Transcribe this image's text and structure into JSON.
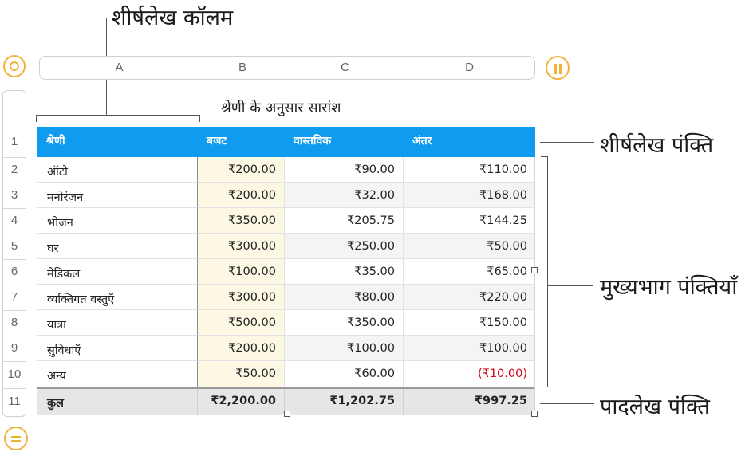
{
  "callouts": {
    "header_column": "शीर्षलेख कॉलम",
    "header_row": "शीर्षलेख पंक्ति",
    "body_rows": "मुख्यभाग पंक्तियाँ",
    "footer_row": "पादलेख पंक्ति"
  },
  "column_letters": [
    "A",
    "B",
    "C",
    "D"
  ],
  "row_numbers": [
    "1",
    "2",
    "3",
    "4",
    "5",
    "6",
    "7",
    "8",
    "9",
    "10",
    "11"
  ],
  "table": {
    "title": "श्रेणी के अनुसार सारांश",
    "headers": [
      "श्रेणी",
      "बजट",
      "वास्तविक",
      "अंतर"
    ],
    "rows": [
      {
        "category": "ऑटो",
        "budget": "₹200.00",
        "actual": "₹90.00",
        "diff": "₹110.00"
      },
      {
        "category": "मनोरंजन",
        "budget": "₹200.00",
        "actual": "₹32.00",
        "diff": "₹168.00"
      },
      {
        "category": "भोजन",
        "budget": "₹350.00",
        "actual": "₹205.75",
        "diff": "₹144.25"
      },
      {
        "category": "घर",
        "budget": "₹300.00",
        "actual": "₹250.00",
        "diff": "₹50.00"
      },
      {
        "category": "मेडिकल",
        "budget": "₹100.00",
        "actual": "₹35.00",
        "diff": "₹65.00"
      },
      {
        "category": "व्यक्तिगत वस्तुएँ",
        "budget": "₹300.00",
        "actual": "₹80.00",
        "diff": "₹220.00"
      },
      {
        "category": "यात्रा",
        "budget": "₹500.00",
        "actual": "₹350.00",
        "diff": "₹150.00"
      },
      {
        "category": "सुविधाएँ",
        "budget": "₹200.00",
        "actual": "₹100.00",
        "diff": "₹100.00"
      },
      {
        "category": "अन्य",
        "budget": "₹50.00",
        "actual": "₹60.00",
        "diff": "(₹10.00)"
      }
    ],
    "footer": {
      "category": "कुल",
      "budget": "₹2,200.00",
      "actual": "₹1,202.75",
      "diff": "₹997.25"
    }
  },
  "colors": {
    "header": "#0f9cf0",
    "accent": "#f2b23a",
    "negative": "#d0021b",
    "footer": "#e6e6e6",
    "budget_column": "#fdf8e4"
  },
  "icons": [
    "table-select-icon",
    "freeze-columns-icon",
    "table-menu-icon"
  ]
}
